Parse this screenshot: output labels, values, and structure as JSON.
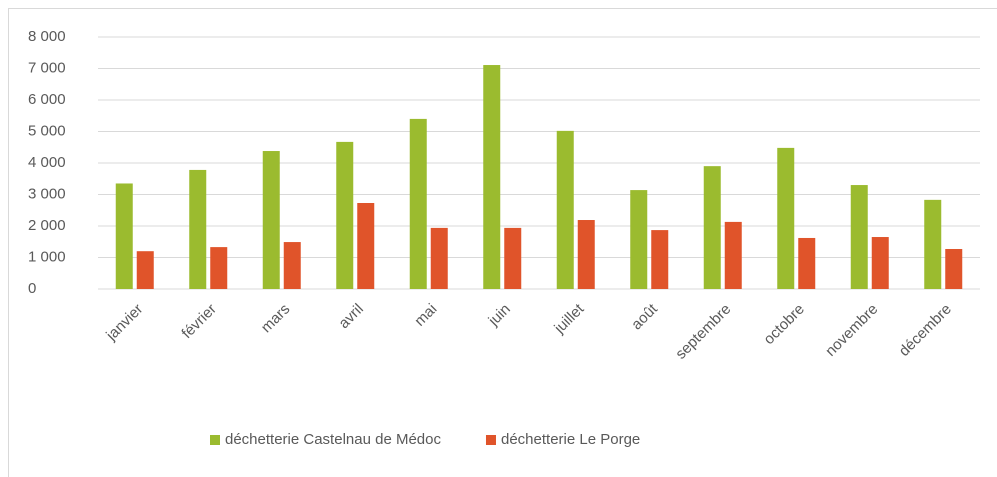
{
  "chart_data": {
    "type": "bar",
    "categories": [
      "janvier",
      "février",
      "mars",
      "avril",
      "mai",
      "juin",
      "juillet",
      "août",
      "septembre",
      "octobre",
      "novembre",
      "décembre"
    ],
    "series": [
      {
        "name": "déchetterie Castelnau de Médoc",
        "color": "#9bbb2f",
        "values": [
          3350,
          3780,
          4380,
          4670,
          5400,
          7110,
          5020,
          3140,
          3900,
          4480,
          3300,
          2830
        ]
      },
      {
        "name": "déchetterie Le Porge",
        "color": "#e0542a",
        "values": [
          1200,
          1330,
          1490,
          2730,
          1940,
          1940,
          2190,
          1870,
          2130,
          1620,
          1650,
          1270
        ]
      }
    ],
    "ylim": [
      0,
      8000
    ],
    "yticks": [
      0,
      {
        "value": 1000,
        "label": "1 000"
      },
      {
        "value": 2000,
        "label": "2 000"
      },
      {
        "value": 3000,
        "label": "3 000"
      },
      {
        "value": 4000,
        "label": "4 000"
      },
      {
        "value": 5000,
        "label": "5 000"
      },
      {
        "value": 6000,
        "label": "6 000"
      },
      {
        "value": 7000,
        "label": "7 000"
      },
      {
        "value": 8000,
        "label": "8 000"
      }
    ],
    "grid": true,
    "legend": "bottom"
  }
}
